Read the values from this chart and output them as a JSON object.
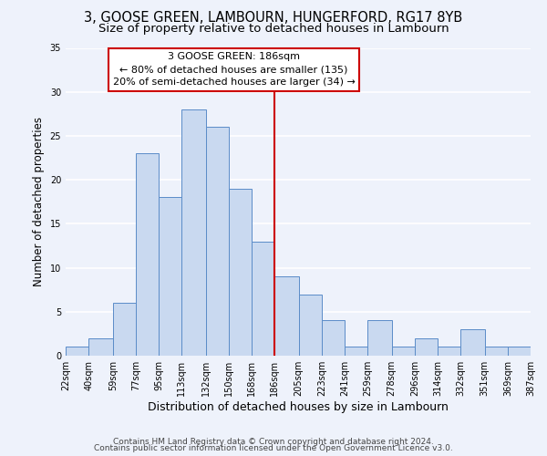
{
  "title": "3, GOOSE GREEN, LAMBOURN, HUNGERFORD, RG17 8YB",
  "subtitle": "Size of property relative to detached houses in Lambourn",
  "xlabel": "Distribution of detached houses by size in Lambourn",
  "ylabel": "Number of detached properties",
  "bin_edges": [
    22,
    40,
    59,
    77,
    95,
    113,
    132,
    150,
    168,
    186,
    205,
    223,
    241,
    259,
    278,
    296,
    314,
    332,
    351,
    369,
    387
  ],
  "bin_labels": [
    "22sqm",
    "40sqm",
    "59sqm",
    "77sqm",
    "95sqm",
    "113sqm",
    "132sqm",
    "150sqm",
    "168sqm",
    "186sqm",
    "205sqm",
    "223sqm",
    "241sqm",
    "259sqm",
    "278sqm",
    "296sqm",
    "314sqm",
    "332sqm",
    "351sqm",
    "369sqm",
    "387sqm"
  ],
  "counts": [
    1,
    2,
    6,
    23,
    18,
    28,
    26,
    19,
    13,
    9,
    7,
    4,
    1,
    4,
    1,
    2,
    1,
    3,
    1,
    1
  ],
  "bar_facecolor": "#c9d9f0",
  "bar_edgecolor": "#5b8cc8",
  "vline_x": 186,
  "vline_color": "#cc0000",
  "annotation_title": "3 GOOSE GREEN: 186sqm",
  "annotation_line1": "← 80% of detached houses are smaller (135)",
  "annotation_line2": "20% of semi-detached houses are larger (34) →",
  "annotation_box_edgecolor": "#cc0000",
  "annotation_box_facecolor": "#ffffff",
  "ylim": [
    0,
    35
  ],
  "yticks": [
    0,
    5,
    10,
    15,
    20,
    25,
    30,
    35
  ],
  "footer1": "Contains HM Land Registry data © Crown copyright and database right 2024.",
  "footer2": "Contains public sector information licensed under the Open Government Licence v3.0.",
  "background_color": "#eef2fb",
  "grid_color": "#ffffff",
  "title_fontsize": 10.5,
  "subtitle_fontsize": 9.5,
  "xlabel_fontsize": 9,
  "ylabel_fontsize": 8.5,
  "tick_fontsize": 7,
  "footer_fontsize": 6.5,
  "annot_fontsize": 8
}
